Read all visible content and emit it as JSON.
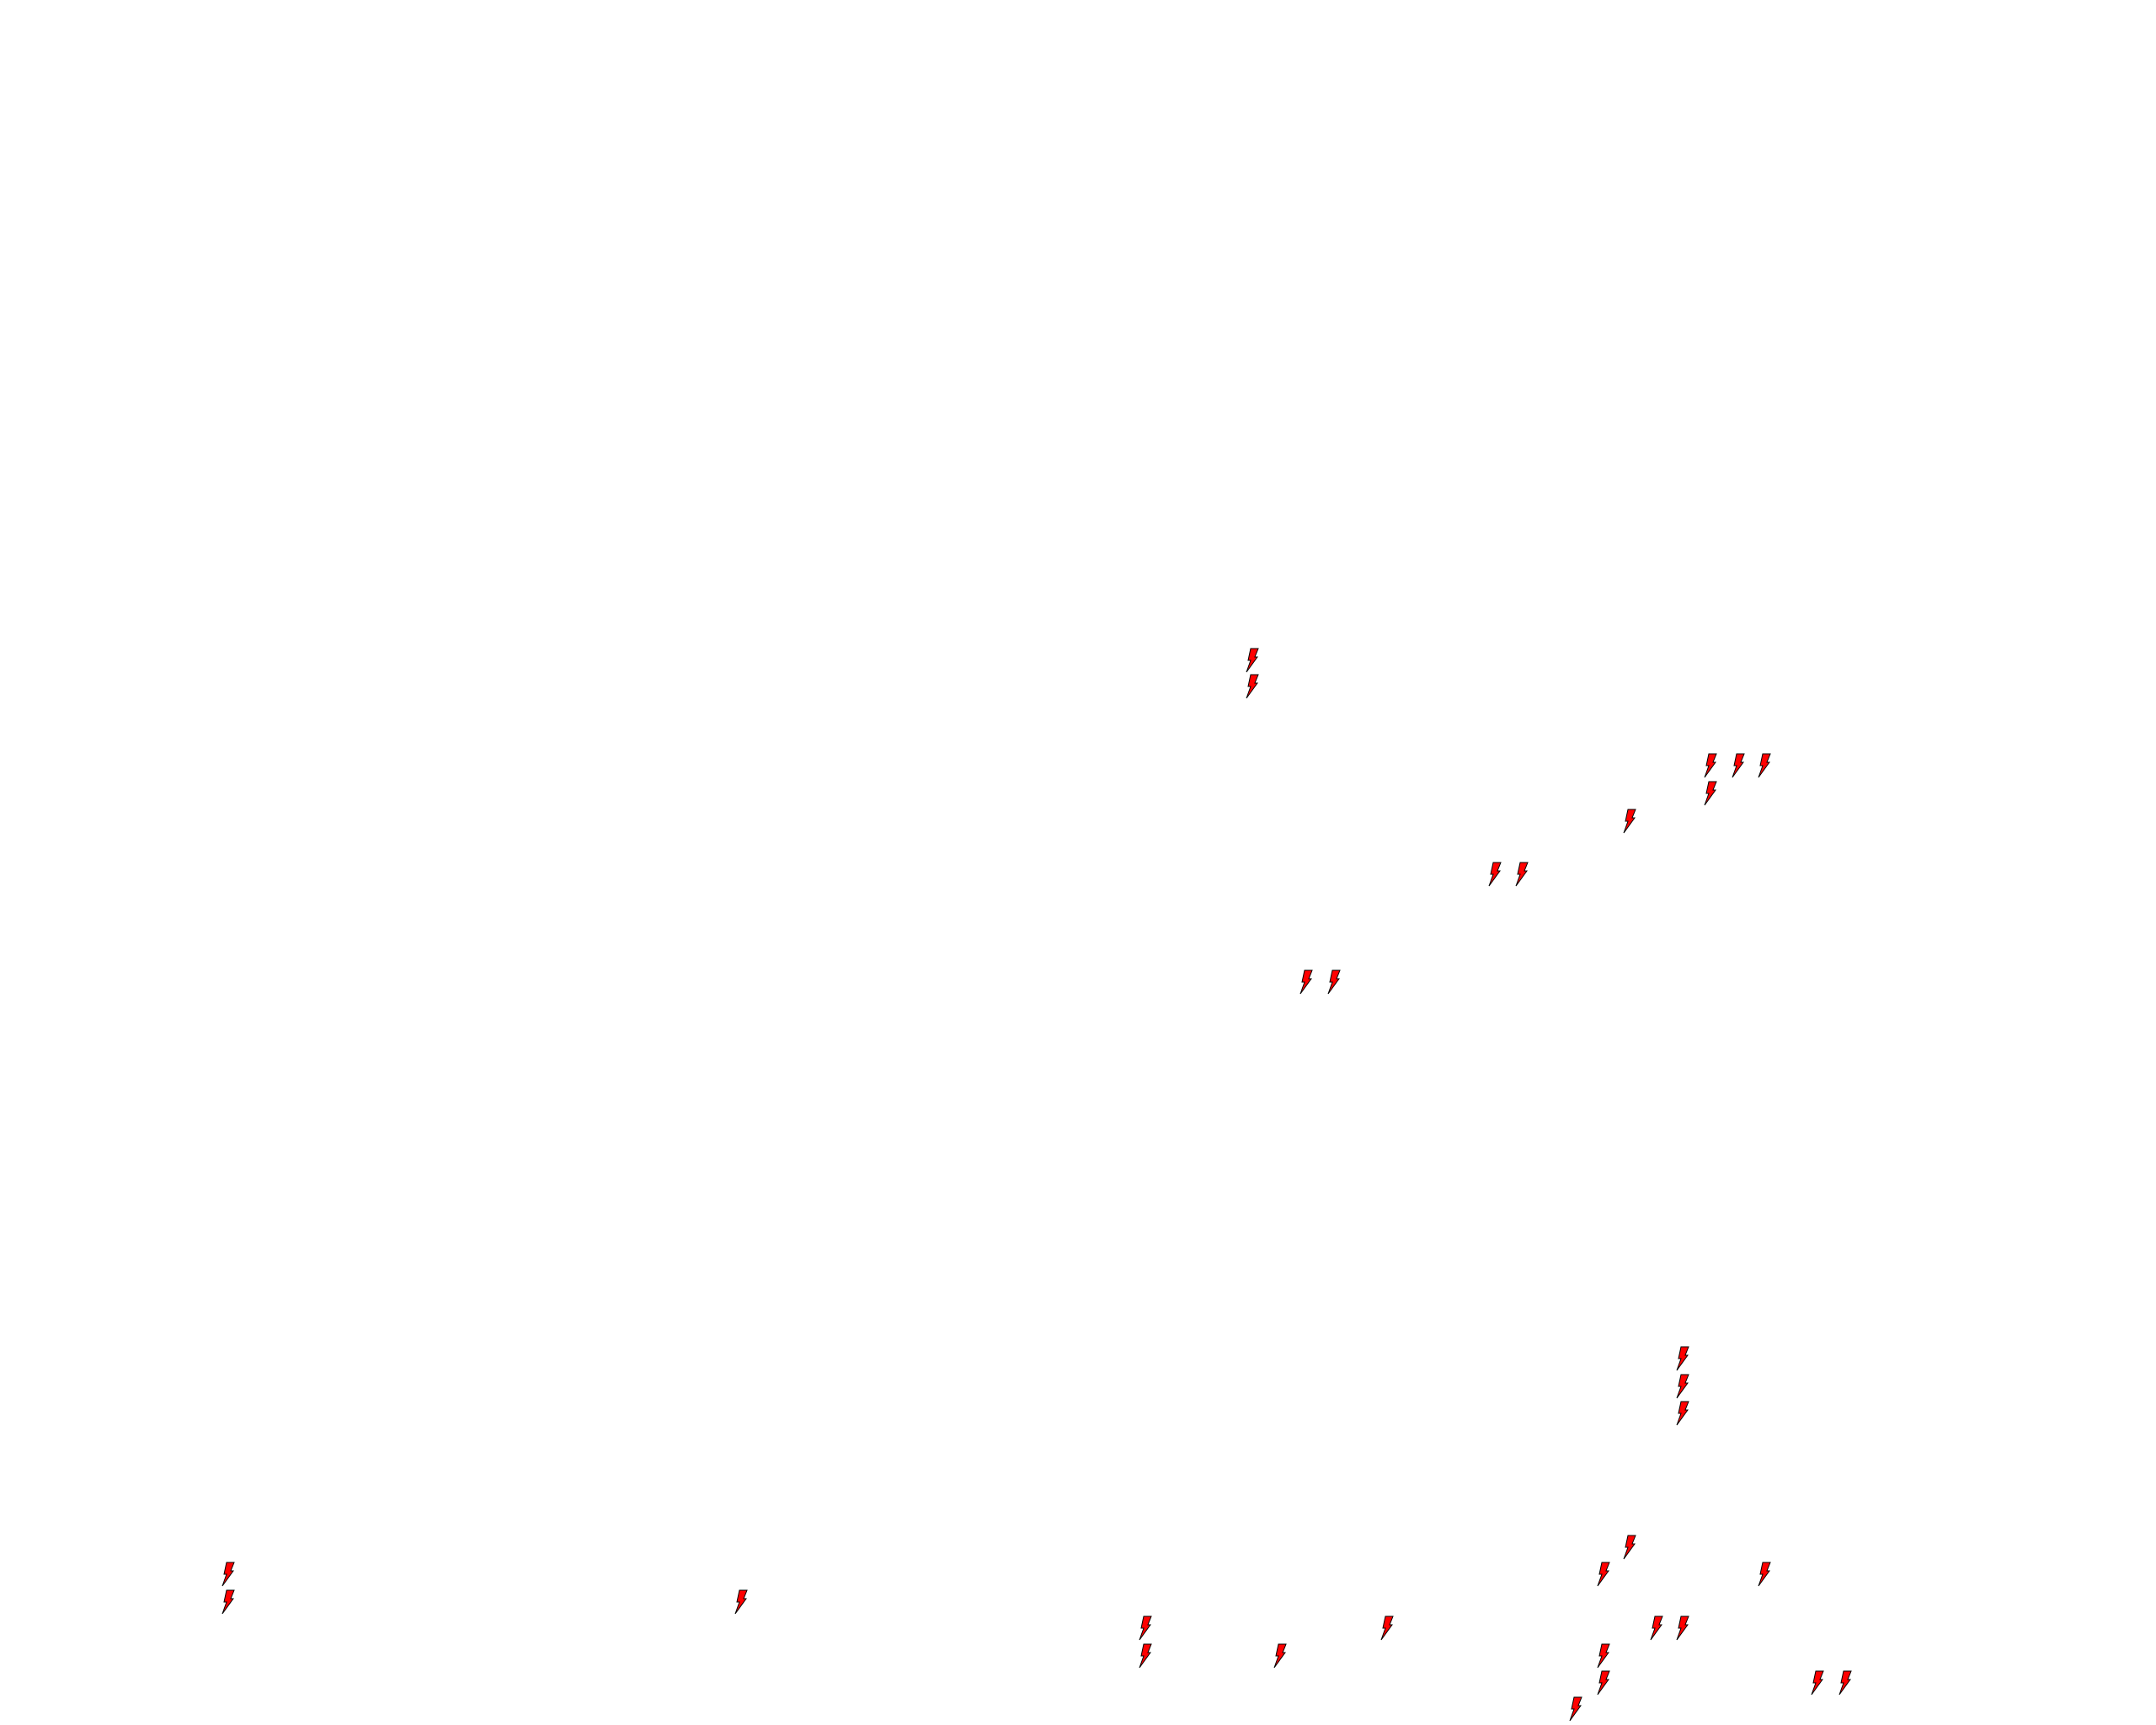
{
  "map": {
    "background": "#ffffff",
    "marker": {
      "icon": "lightning-bolt-icon",
      "fill": "#ff0000",
      "outline": "#000000"
    }
  }
}
